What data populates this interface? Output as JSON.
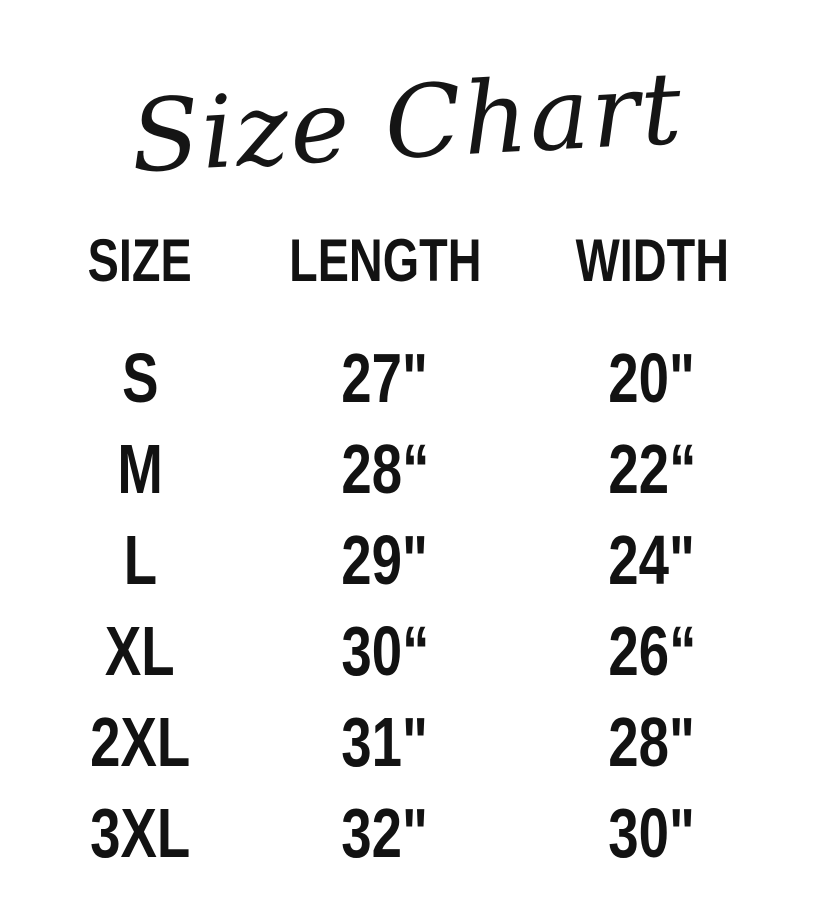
{
  "page": {
    "background_color": "#ffffff",
    "text_color": "#121212"
  },
  "title": {
    "text": "Size Chart"
  },
  "table": {
    "headers": {
      "size": "SIZE",
      "length": "LENGTH",
      "width": "WIDTH"
    },
    "rows": [
      {
        "size": "S",
        "length": "27\"",
        "width": "20\""
      },
      {
        "size": "M",
        "length": "28“",
        "width": "22“"
      },
      {
        "size": "L",
        "length": "29\"",
        "width": "24\""
      },
      {
        "size": "XL",
        "length": "30“",
        "width": "26“"
      },
      {
        "size": "2XL",
        "length": "31\"",
        "width": "28\""
      },
      {
        "size": "3XL",
        "length": "32\"",
        "width": "30\""
      }
    ]
  },
  "chart_data": {
    "type": "table",
    "title": "Size Chart",
    "columns": [
      "SIZE",
      "LENGTH",
      "WIDTH"
    ],
    "rows": [
      [
        "S",
        "27\"",
        "20\""
      ],
      [
        "M",
        "28“",
        "22“"
      ],
      [
        "L",
        "29\"",
        "24\""
      ],
      [
        "XL",
        "30“",
        "26“"
      ],
      [
        "2XL",
        "31\"",
        "28\""
      ],
      [
        "3XL",
        "32\"",
        "30\""
      ]
    ],
    "units": "inches",
    "layout": {
      "background": "white",
      "grid": false,
      "borders": false,
      "text_style": "bold condensed varsity block, black"
    }
  }
}
